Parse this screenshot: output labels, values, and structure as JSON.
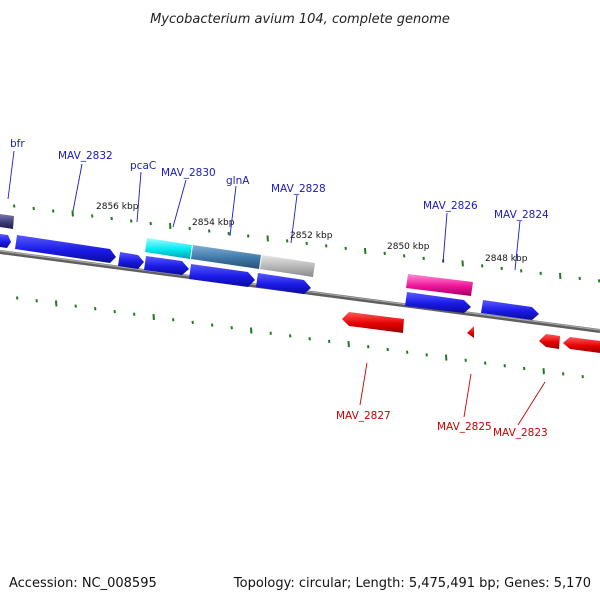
{
  "title": "Mycobacterium avium 104, complete genome",
  "accession": "Accession: NC_008595",
  "summary": "Topology: circular; Length: 5,475,491 bp; Genes: 5,170",
  "colors": {
    "forward_gene": "#1a1ae6",
    "reverse_gene": "#e60000",
    "backbone": "#7a7a7a",
    "tick": "#1f7a1f",
    "label_forward": "#1a1abf",
    "label_reverse": "#cc0000"
  },
  "kbp_labels": [
    "2856 kbp",
    "2854 kbp",
    "2852 kbp",
    "2850 kbp",
    "2848 kbp"
  ],
  "forward_labels": [
    "bfr",
    "MAV_2832",
    "pcaC",
    "MAV_2830",
    "glnA",
    "MAV_2828",
    "MAV_2826",
    "MAV_2824"
  ],
  "reverse_labels": [
    "MAV_2827",
    "MAV_2825",
    "MAV_2823"
  ]
}
